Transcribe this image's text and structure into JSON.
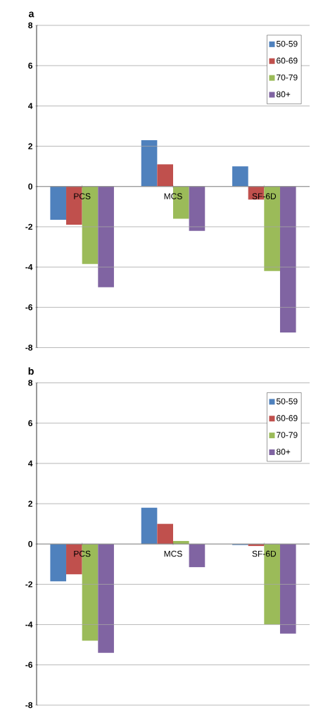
{
  "chart_data": [
    {
      "type": "bar",
      "title": "a",
      "categories": [
        "PCS",
        "MCS",
        "SF-6D"
      ],
      "series": [
        {
          "name": "50-59",
          "color": "#4f81bd",
          "values": [
            -1.65,
            2.3,
            1.0
          ]
        },
        {
          "name": "60-69",
          "color": "#c0504d",
          "values": [
            -1.9,
            1.1,
            -0.65
          ]
        },
        {
          "name": "70-79",
          "color": "#9bbb59",
          "values": [
            -3.85,
            -1.6,
            -4.2
          ]
        },
        {
          "name": "80+",
          "color": "#8064a2",
          "values": [
            -5.0,
            -2.2,
            -7.25
          ]
        }
      ],
      "ylim": [
        -8,
        8
      ],
      "yticks": [
        -8,
        -6,
        -4,
        -2,
        0,
        2,
        4,
        6,
        8
      ],
      "grid": "y",
      "legend": "top right"
    },
    {
      "type": "bar",
      "title": "b",
      "categories": [
        "PCS",
        "MCS",
        "SF-6D"
      ],
      "series": [
        {
          "name": "50-59",
          "color": "#4f81bd",
          "values": [
            -1.85,
            1.8,
            -0.05
          ]
        },
        {
          "name": "60-69",
          "color": "#c0504d",
          "values": [
            -1.5,
            1.0,
            -0.1
          ]
        },
        {
          "name": "70-79",
          "color": "#9bbb59",
          "values": [
            -4.8,
            0.15,
            -4.0
          ]
        },
        {
          "name": "80+",
          "color": "#8064a2",
          "values": [
            -5.4,
            -1.15,
            -4.45
          ]
        }
      ],
      "ylim": [
        -8,
        8
      ],
      "yticks": [
        -8,
        -6,
        -4,
        -2,
        0,
        2,
        4,
        6,
        8
      ],
      "grid": "y",
      "legend": "top right"
    }
  ]
}
